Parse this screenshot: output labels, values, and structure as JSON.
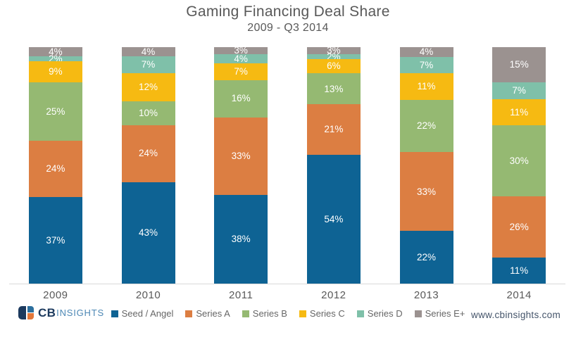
{
  "header": {
    "title": "Gaming Financing Deal Share",
    "subtitle": "2009 - Q3 2014"
  },
  "chart_data": {
    "type": "bar",
    "variant": "stacked-100-percent",
    "title": "Gaming Financing Deal Share",
    "subtitle": "2009 - Q3 2014",
    "categories": [
      "2009",
      "2010",
      "2011",
      "2012",
      "2013",
      "2014"
    ],
    "series": [
      {
        "name": "Seed / Angel",
        "color": "#0E6394",
        "values": [
          37,
          43,
          38,
          54,
          22,
          11
        ]
      },
      {
        "name": "Series A",
        "color": "#DC7E42",
        "values": [
          24,
          24,
          33,
          21,
          33,
          26
        ]
      },
      {
        "name": "Series B",
        "color": "#95B972",
        "values": [
          25,
          10,
          16,
          13,
          22,
          30
        ]
      },
      {
        "name": "Series C",
        "color": "#F6BA12",
        "values": [
          9,
          12,
          7,
          6,
          11,
          11
        ]
      },
      {
        "name": "Series D",
        "color": "#7FC0A9",
        "values": [
          2,
          7,
          4,
          2,
          7,
          7
        ]
      },
      {
        "name": "Series E+",
        "color": "#9B9290",
        "values": [
          4,
          4,
          3,
          3,
          4,
          15
        ]
      }
    ],
    "value_suffix": "%",
    "data_labels": true,
    "label_color": "#FFFFFF",
    "legend_position": "bottom",
    "grid": false,
    "y_axis_visible": false
  },
  "footer": {
    "logo_cb": "CB",
    "logo_insights": "INSIGHTS",
    "url": "www.cbinsights.com"
  }
}
